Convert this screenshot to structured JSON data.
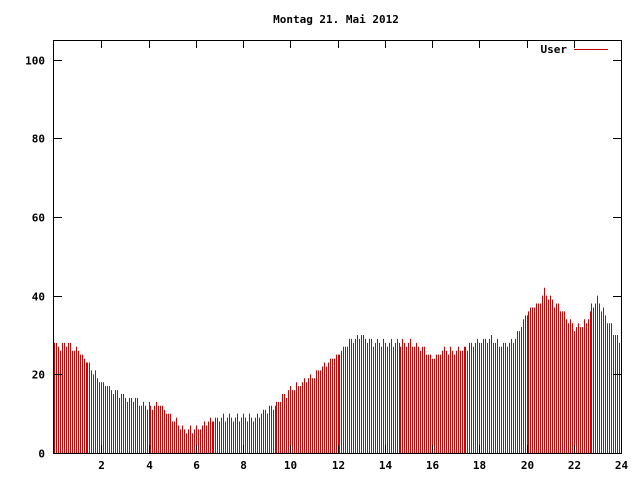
{
  "chart_data": {
    "type": "bar",
    "title": "Montag 21. Mai 2012",
    "xlabel": "",
    "ylabel": "",
    "xlim": [
      0,
      24
    ],
    "ylim": [
      0,
      105
    ],
    "xticks": [
      "2",
      "4",
      "6",
      "8",
      "10",
      "12",
      "14",
      "16",
      "18",
      "20",
      "22",
      "24"
    ],
    "yticks": [
      "0",
      "20",
      "40",
      "60",
      "80",
      "100"
    ],
    "grid": false,
    "legend_position": "top-right",
    "series": [
      {
        "name": "User",
        "color": "#cc0000",
        "keypoints_hours": [
          0,
          0.25,
          0.5,
          1,
          1.5,
          2,
          2.5,
          3,
          3.5,
          4,
          4.5,
          5,
          5.5,
          6,
          6.5,
          7,
          7.5,
          8,
          8.5,
          9,
          9.5,
          10,
          10.5,
          11,
          11.5,
          12,
          12.5,
          13,
          13.5,
          14,
          14.5,
          15,
          15.5,
          16,
          16.5,
          17,
          17.5,
          18,
          18.5,
          19,
          19.5,
          20,
          20.5,
          20.75,
          21,
          21.5,
          22,
          22.5,
          22.75,
          23,
          23.5,
          24
        ],
        "keypoints_values": [
          28,
          27,
          28,
          26,
          22,
          18,
          16,
          14,
          13,
          12,
          12,
          9,
          6,
          6,
          8,
          9,
          9,
          9,
          9,
          11,
          13,
          16,
          18,
          20,
          23,
          25,
          28,
          30,
          28,
          28,
          28,
          28,
          27,
          24,
          26,
          26,
          27,
          28,
          29,
          27,
          29,
          36,
          38,
          41,
          39,
          36,
          32,
          33,
          37,
          39,
          33,
          27
        ]
      }
    ]
  }
}
